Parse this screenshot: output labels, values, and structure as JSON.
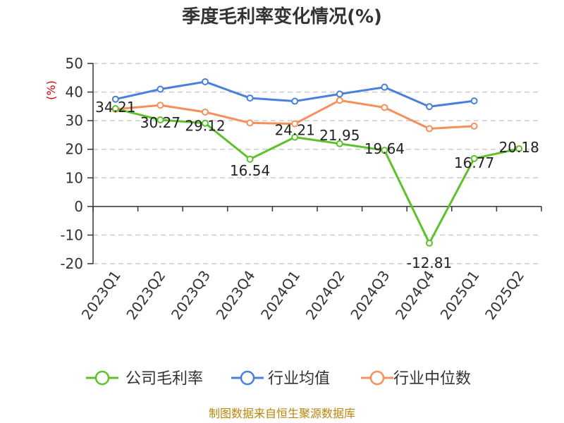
{
  "chart_data": {
    "type": "line",
    "title": "季度毛利率变化情况(%)",
    "ylabel": "(%)",
    "xlabel": "",
    "categories": [
      "2023Q1",
      "2023Q2",
      "2023Q3",
      "2023Q4",
      "2024Q1",
      "2024Q2",
      "2024Q3",
      "2024Q4",
      "2025Q1",
      "2025Q2"
    ],
    "ylim": [
      -20,
      50
    ],
    "yticks": [
      50,
      40,
      30,
      20,
      10,
      0,
      -10,
      -20
    ],
    "grid": true,
    "legend_position": "bottom",
    "series": [
      {
        "name": "公司毛利率",
        "color": "#5ec12a",
        "values": [
          34.21,
          30.27,
          29.12,
          16.54,
          24.21,
          21.95,
          19.64,
          -12.81,
          16.77,
          20.18
        ],
        "labels": [
          "34.21",
          "30.27",
          "29.12",
          "16.54",
          "24.21",
          "21.95",
          "19.64",
          "-12.81",
          "16.77",
          "20.18"
        ]
      },
      {
        "name": "行业均值",
        "color": "#4a7fdc",
        "values": [
          37.5,
          41,
          43.6,
          37.9,
          36.8,
          39.3,
          41.7,
          34.9,
          36.9,
          null
        ]
      },
      {
        "name": "行业中位数",
        "color": "#f5905a",
        "values": [
          34.0,
          35.4,
          33.0,
          29.2,
          28.9,
          37.1,
          34.6,
          27.2,
          28.1,
          null
        ]
      }
    ]
  },
  "source_text": "制图数据来自恒生聚源数据库",
  "colors": {
    "axis": "#333333",
    "grid": "#cccccc",
    "unit": "#cc0000",
    "source": "#b8860b"
  }
}
